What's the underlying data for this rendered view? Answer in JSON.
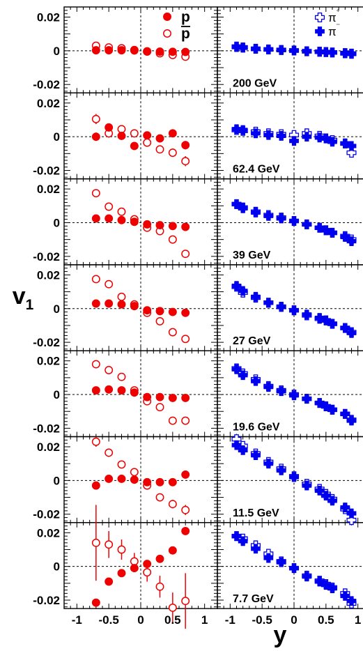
{
  "chart_data": {
    "type": "scatter",
    "ylabel": "v₁",
    "ylabel_main": "v",
    "ylabel_sub": "1",
    "xlabel": "y",
    "xlim": [
      -1.2,
      1.2
    ],
    "ylim": [
      -0.025,
      0.026
    ],
    "xticks": [
      "-1",
      "-0.5",
      "0",
      "0.5",
      "1"
    ],
    "xtick_values": [
      -1,
      -0.5,
      0,
      0.5,
      1
    ],
    "yticks": [
      "0.02",
      "0",
      "-0.02"
    ],
    "ytick_values": [
      0.02,
      0,
      -0.02
    ],
    "reference_lines": {
      "x": 0,
      "y": 0
    },
    "legend_left": [
      {
        "label": "p",
        "marker": "filled-circle"
      },
      {
        "label": "p̅",
        "marker": "open-circle"
      }
    ],
    "legend_right": [
      {
        "label": "π⁺",
        "marker": "open-cross"
      },
      {
        "label": "π⁻",
        "marker": "filled-cross"
      }
    ],
    "colors": {
      "proton": "#ee0000",
      "pion": "#0000ee"
    },
    "x_proton": [
      -0.7,
      -0.5,
      -0.3,
      -0.1,
      0.1,
      0.3,
      0.5,
      0.7
    ],
    "x_pion": [
      -0.9,
      -0.8,
      -0.6,
      -0.4,
      -0.2,
      0.0,
      0.2,
      0.4,
      0.5,
      0.6,
      0.8,
      0.9
    ],
    "panels": [
      {
        "energy": "200 GeV",
        "p": {
          "y": [
            0.0003,
            0.0003,
            0.0003,
            0.0002,
            -0.0003,
            -0.0005,
            -0.0006,
            -0.0007
          ],
          "err": [
            0.0006,
            0.0006,
            0.0006,
            0.0006,
            0.0006,
            0.0006,
            0.0006,
            0.0006
          ]
        },
        "pbar": {
          "y": [
            0.003,
            0.002,
            0.0015,
            0.0005,
            -0.0005,
            -0.0015,
            -0.0025,
            -0.0035
          ],
          "err": [
            0.0012,
            0.0012,
            0.0012,
            0.0012,
            0.0012,
            0.0012,
            0.0012,
            0.0012
          ]
        },
        "pip": {
          "y": [
            0.0025,
            0.002,
            0.0012,
            0.0008,
            0.0005,
            0.0002,
            -0.0003,
            -0.0006,
            -0.0008,
            -0.001,
            -0.0015,
            -0.0018
          ]
        },
        "pim": {
          "y": [
            0.0022,
            0.0018,
            0.0012,
            0.0008,
            0.0004,
            0.0001,
            -0.0002,
            -0.0005,
            -0.0007,
            -0.001,
            -0.0013,
            -0.0016
          ]
        }
      },
      {
        "energy": "62.4 GeV",
        "p": {
          "y": [
            0.0,
            0.0055,
            0.0005,
            -0.0055,
            0.0008,
            -0.001,
            0.002,
            -0.005
          ],
          "err": [
            0.0025,
            0.002,
            0.0015,
            0.0015,
            0.0015,
            0.0015,
            0.0015,
            0.0025
          ]
        },
        "pbar": {
          "y": [
            0.0105,
            0.002,
            0.0045,
            0.002,
            -0.0035,
            -0.0075,
            -0.0095,
            -0.0145
          ],
          "err": [
            0.003,
            0.0025,
            0.0022,
            0.002,
            0.002,
            0.0022,
            0.0025,
            0.003
          ]
        },
        "pip": {
          "y": [
            0.004,
            0.0035,
            0.003,
            0.002,
            0.0015,
            0.001,
            0.002,
            0.0005,
            -0.001,
            -0.002,
            -0.004,
            -0.0095
          ]
        },
        "pim": {
          "y": [
            0.0045,
            0.004,
            0.002,
            0.001,
            0.0005,
            -0.0025,
            0.0,
            -0.0005,
            -0.001,
            -0.003,
            -0.004,
            -0.0055
          ]
        }
      },
      {
        "energy": "39 GeV",
        "p": {
          "y": [
            0.0025,
            0.0025,
            0.0015,
            0.0005,
            -0.001,
            -0.0015,
            -0.002,
            -0.0025
          ],
          "err": [
            0.0007,
            0.0007,
            0.0007,
            0.0007,
            0.0007,
            0.0007,
            0.0007,
            0.0007
          ]
        },
        "pbar": {
          "y": [
            0.0175,
            0.0095,
            0.0065,
            0.002,
            -0.003,
            -0.005,
            -0.01,
            -0.0185
          ],
          "err": [
            0.0012,
            0.0012,
            0.0012,
            0.0012,
            0.0012,
            0.0012,
            0.0012,
            0.0012
          ]
        },
        "pip": {
          "y": [
            0.011,
            0.009,
            0.0065,
            0.0045,
            0.003,
            0.001,
            -0.001,
            -0.003,
            -0.0045,
            -0.006,
            -0.008,
            -0.01
          ]
        },
        "pim": {
          "y": [
            0.011,
            0.0085,
            0.006,
            0.004,
            0.0025,
            0.001,
            -0.001,
            -0.003,
            -0.0045,
            -0.006,
            -0.0085,
            -0.011
          ]
        }
      },
      {
        "energy": "27 GeV",
        "p": {
          "y": [
            0.003,
            0.003,
            0.0025,
            0.0015,
            -0.001,
            -0.0015,
            -0.002,
            -0.0025
          ],
          "err": [
            0.0007,
            0.0007,
            0.0007,
            0.0007,
            0.0007,
            0.0007,
            0.0007,
            0.0007
          ]
        },
        "pbar": {
          "y": [
            0.0175,
            0.0145,
            0.007,
            0.0025,
            -0.0025,
            -0.0075,
            -0.014,
            -0.018
          ],
          "err": [
            0.0012,
            0.0012,
            0.0012,
            0.0012,
            0.0012,
            0.0012,
            0.0012,
            0.0012
          ]
        },
        "pip": {
          "y": [
            0.013,
            0.0095,
            0.0065,
            0.0035,
            0.001,
            -0.001,
            -0.004,
            -0.006,
            -0.007,
            -0.009,
            -0.0115,
            -0.014
          ]
        },
        "pim": {
          "y": [
            0.0135,
            0.0105,
            0.007,
            0.0035,
            0.0012,
            -0.001,
            -0.0035,
            -0.0055,
            -0.007,
            -0.009,
            -0.0115,
            -0.0145
          ]
        }
      },
      {
        "energy": "19.6 GeV",
        "p": {
          "y": [
            0.0025,
            0.003,
            0.0025,
            0.0012,
            -0.0015,
            -0.0015,
            -0.002,
            -0.002
          ],
          "err": [
            0.0007,
            0.0007,
            0.0007,
            0.0007,
            0.0007,
            0.0007,
            0.0007,
            0.0007
          ]
        },
        "pbar": {
          "y": [
            0.018,
            0.0145,
            0.0105,
            0.0025,
            -0.004,
            -0.0075,
            -0.0155,
            -0.0155
          ],
          "err": [
            0.0012,
            0.0012,
            0.0012,
            0.0012,
            0.0012,
            0.0012,
            0.0012,
            0.0012
          ]
        },
        "pip": {
          "y": [
            0.0155,
            0.0125,
            0.009,
            0.005,
            0.0025,
            0.0,
            -0.0025,
            -0.005,
            -0.007,
            -0.009,
            -0.0115,
            -0.015
          ]
        },
        "pim": {
          "y": [
            0.015,
            0.0115,
            0.008,
            0.0045,
            0.002,
            -0.0005,
            -0.0025,
            -0.005,
            -0.007,
            -0.009,
            -0.0115,
            -0.0155
          ]
        }
      },
      {
        "energy": "11.5 GeV",
        "p": {
          "y": [
            -0.003,
            0.001,
            0.001,
            0.0005,
            -0.001,
            -0.001,
            -0.001,
            0.0035
          ],
          "err": [
            0.0008,
            0.0008,
            0.0008,
            0.0008,
            0.0008,
            0.0008,
            0.0008,
            0.0008
          ]
        },
        "pbar": {
          "y": [
            0.023,
            0.0165,
            0.0095,
            0.005,
            -0.003,
            -0.01,
            -0.014,
            -0.0175
          ],
          "err": [
            0.003,
            0.0025,
            0.002,
            0.002,
            0.002,
            0.0022,
            0.0025,
            0.003
          ]
        },
        "pip": {
          "y": [
            0.0245,
            0.0205,
            0.016,
            0.011,
            0.007,
            0.0025,
            -0.002,
            -0.005,
            -0.008,
            -0.011,
            -0.017,
            -0.0235
          ]
        },
        "pim": {
          "y": [
            0.021,
            0.018,
            0.015,
            0.01,
            0.006,
            0.002,
            -0.003,
            -0.006,
            -0.009,
            -0.012,
            -0.016,
            -0.0195
          ]
        }
      },
      {
        "energy": "7.7 GeV",
        "p": {
          "y": [
            -0.0215,
            -0.009,
            -0.004,
            -0.001,
            0.0015,
            0.0045,
            0.0095,
            0.021
          ],
          "err": [
            0.0012,
            0.0012,
            0.0012,
            0.0012,
            0.0012,
            0.0012,
            0.0012,
            0.0012
          ]
        },
        "pbar": {
          "y": [
            0.014,
            0.013,
            0.01,
            0.003,
            -0.0035,
            -0.012,
            -0.0245,
            -0.0205
          ],
          "err": [
            0.0225,
            0.008,
            0.006,
            0.005,
            0.0055,
            0.0065,
            0.009,
            0.0165
          ]
        },
        "pip": {
          "y": [
            0.018,
            0.0165,
            0.0125,
            0.0075,
            0.003,
            -0.001,
            -0.0055,
            -0.0085,
            -0.0105,
            -0.0125,
            -0.016,
            -0.022
          ]
        },
        "pim": {
          "y": [
            0.018,
            0.015,
            0.0105,
            0.005,
            0.0025,
            -0.001,
            -0.006,
            -0.009,
            -0.011,
            -0.013,
            -0.0175,
            -0.0205
          ]
        }
      }
    ]
  }
}
